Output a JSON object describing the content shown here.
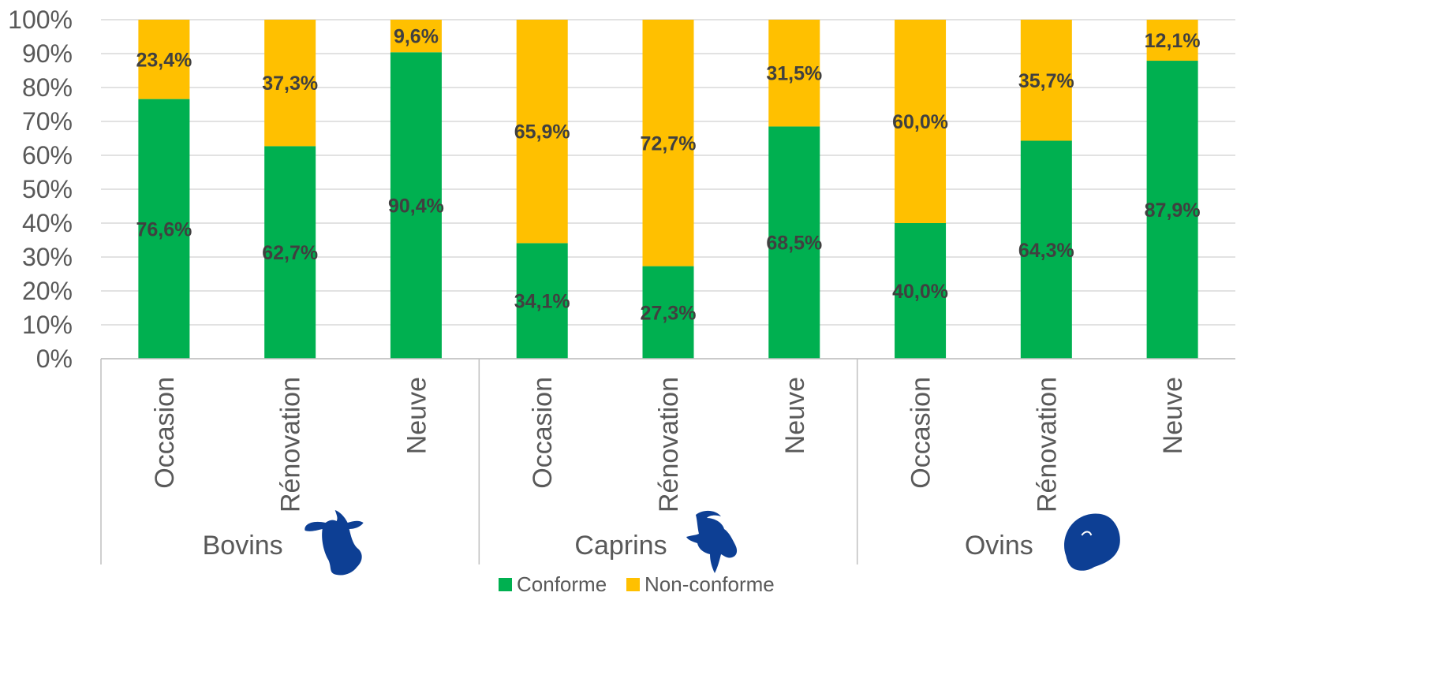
{
  "chart_data": {
    "type": "bar",
    "stacked": true,
    "groups": [
      {
        "label": "Bovins",
        "icon": "cow-head-icon",
        "categories": [
          "Occasion",
          "Rénovation",
          "Neuve"
        ]
      },
      {
        "label": "Caprins",
        "icon": "goat-head-icon",
        "categories": [
          "Occasion",
          "Rénovation",
          "Neuve"
        ]
      },
      {
        "label": "Ovins",
        "icon": "sheep-head-icon",
        "categories": [
          "Occasion",
          "Rénovation",
          "Neuve"
        ]
      }
    ],
    "series": [
      {
        "name": "Conforme",
        "color": "#00B050",
        "values": [
          76.6,
          62.7,
          90.4,
          34.1,
          27.3,
          68.5,
          40.0,
          64.3,
          87.9
        ],
        "labels": [
          "76,6%",
          "62,7%",
          "90,4%",
          "34,1%",
          "27,3%",
          "68,5%",
          "40,0%",
          "64,3%",
          "87,9%"
        ]
      },
      {
        "name": "Non-conforme",
        "color": "#FFC000",
        "values": [
          23.4,
          37.3,
          9.6,
          65.9,
          72.7,
          31.5,
          60.0,
          35.7,
          12.1
        ],
        "labels": [
          "23,4%",
          "37,3%",
          "9,6%",
          "65,9%",
          "72,7%",
          "31,5%",
          "60,0%",
          "35,7%",
          "12,1%"
        ]
      }
    ],
    "ylim": [
      0,
      100
    ],
    "yticks": [
      "0%",
      "10%",
      "20%",
      "30%",
      "40%",
      "50%",
      "60%",
      "70%",
      "80%",
      "90%",
      "100%"
    ],
    "grid": true,
    "legend": "bottom",
    "icon_color": "#0D3F94"
  }
}
